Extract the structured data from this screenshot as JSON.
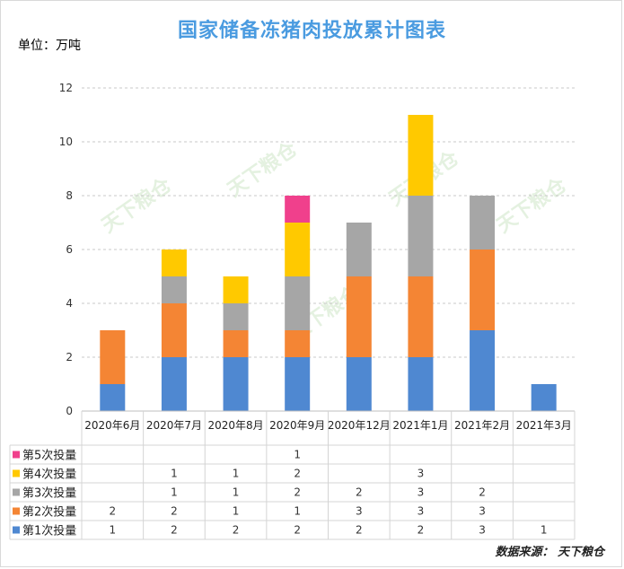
{
  "title": "国家储备冻猪肉投放累计图表",
  "unit_label": "单位：万吨",
  "source_label": "数据来源： 天下粮仓",
  "watermark_text": "天下粮仓",
  "chart_data": {
    "type": "bar",
    "stacked": true,
    "categories": [
      "2020年6月",
      "2020年7月",
      "2020年8月",
      "2020年9月",
      "2020年12月",
      "2021年1月",
      "2021年2月",
      "2021年3月"
    ],
    "ylim": [
      0,
      12
    ],
    "yticks": [
      0,
      2,
      4,
      6,
      8,
      10,
      12
    ],
    "grid": true,
    "legend_placement": "table-left",
    "data_table": true,
    "series": [
      {
        "name": "第1次投量",
        "color": "#4f88d1",
        "values": [
          1,
          2,
          2,
          2,
          2,
          2,
          3,
          1
        ]
      },
      {
        "name": "第2次投量",
        "color": "#f48534",
        "values": [
          2,
          2,
          1,
          1,
          3,
          3,
          3,
          null
        ]
      },
      {
        "name": "第3次投量",
        "color": "#a6a6a6",
        "values": [
          null,
          1,
          1,
          2,
          2,
          3,
          2,
          null
        ]
      },
      {
        "name": "第4次投量",
        "color": "#ffc900",
        "values": [
          null,
          1,
          1,
          2,
          null,
          3,
          null,
          null
        ]
      },
      {
        "name": "第5次投量",
        "color": "#f0408c",
        "values": [
          null,
          null,
          null,
          1,
          null,
          null,
          null,
          null
        ]
      }
    ]
  }
}
